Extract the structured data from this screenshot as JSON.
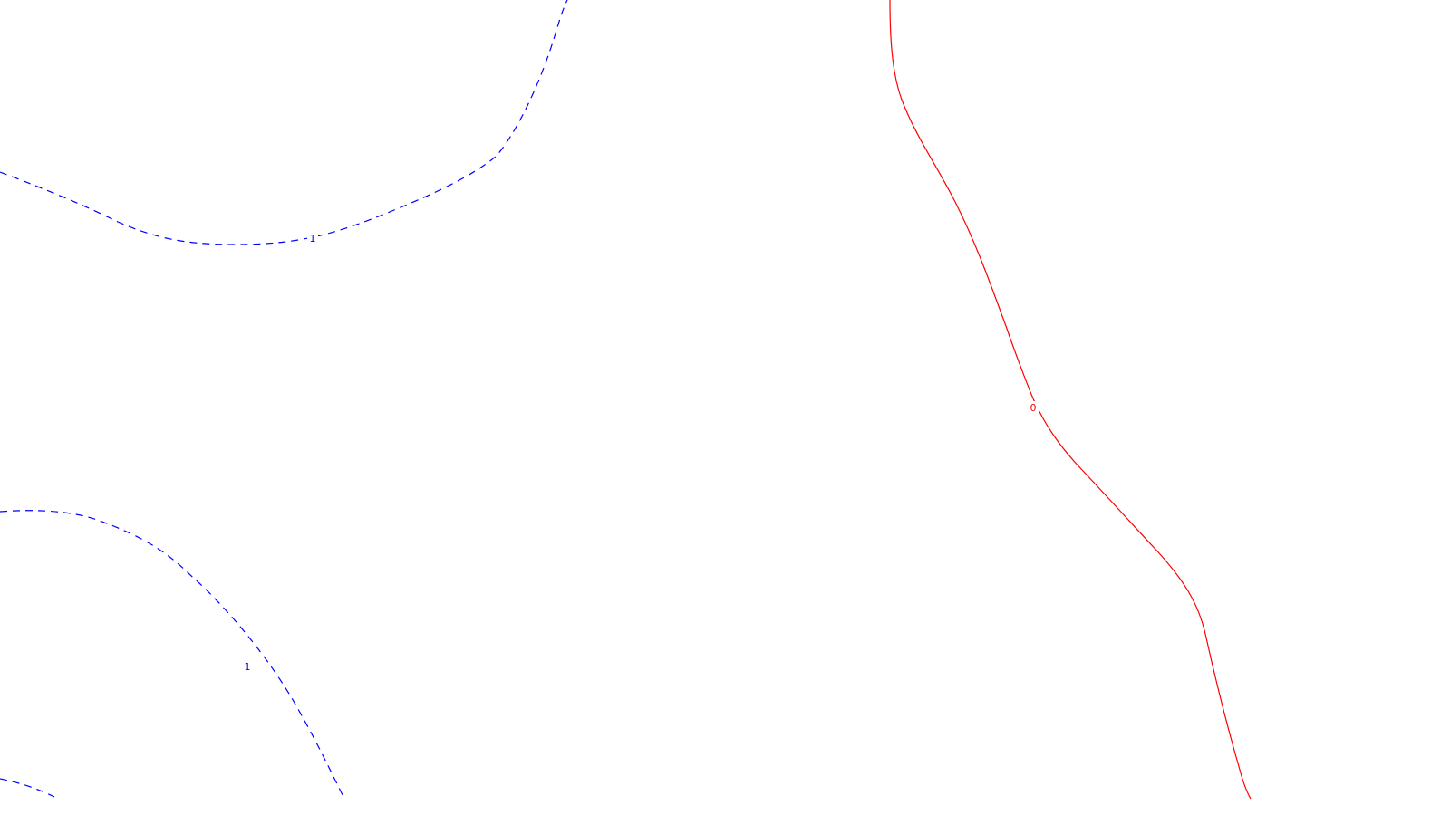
{
  "chart_data": {
    "type": "contour",
    "title": "",
    "xlabel": "",
    "ylabel": "",
    "grid": false,
    "legend": "none",
    "series": [
      {
        "name": "contour-level-1-upper",
        "level_label": "1",
        "color": "#0000ff",
        "style": "dashed"
      },
      {
        "name": "contour-level-1-lower",
        "level_label": "1",
        "color": "#0000ff",
        "style": "dashed"
      },
      {
        "name": "contour-level-1-corner",
        "level_label": "",
        "color": "#0000ff",
        "style": "dashed"
      },
      {
        "name": "contour-level-0",
        "level_label": "0",
        "color": "#ff0000",
        "style": "solid"
      }
    ]
  }
}
